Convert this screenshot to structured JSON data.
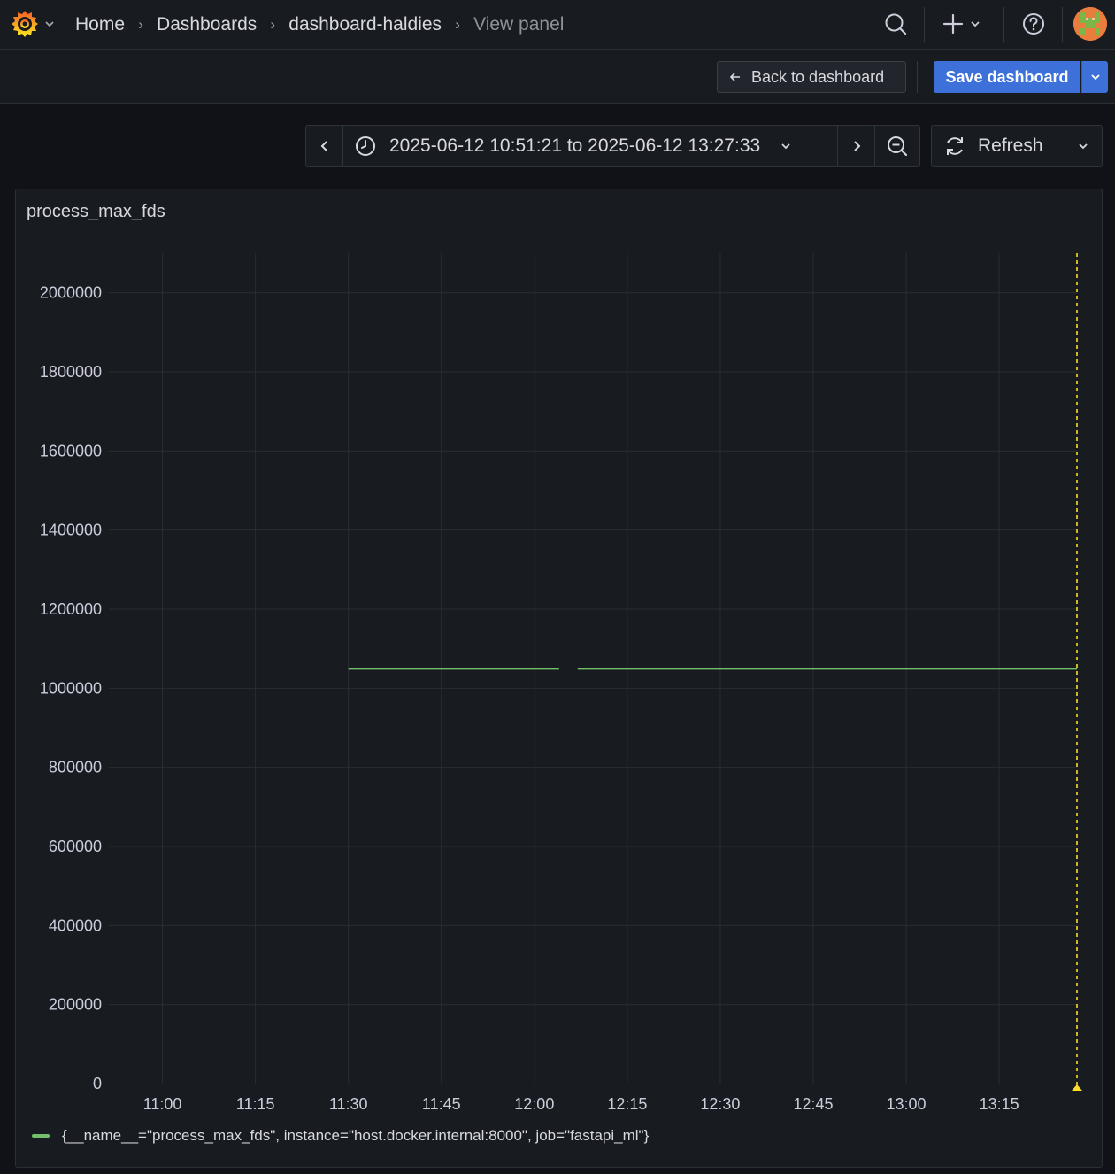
{
  "topbar": {
    "breadcrumbs": [
      "Home",
      "Dashboards",
      "dashboard-haldies"
    ],
    "current": "View panel",
    "icons": [
      "grafana-logo-icon",
      "search-icon",
      "plus-icon",
      "help-icon",
      "avatar"
    ]
  },
  "actions": {
    "back_label": "Back to dashboard",
    "save_label": "Save dashboard"
  },
  "time_picker": {
    "range": "2025-06-12 10:51:21 to 2025-06-12 13:27:33",
    "refresh_label": "Refresh"
  },
  "colors": {
    "series": "#73bf69",
    "now_marker": "#fade2a",
    "accent": "#3d71d9"
  },
  "panel": {
    "title": "process_max_fds"
  },
  "chart_data": {
    "type": "line",
    "title": "process_max_fds",
    "y_ticks": [
      0,
      200000,
      400000,
      600000,
      800000,
      1000000,
      1200000,
      1400000,
      1600000,
      1800000,
      2000000
    ],
    "x_ticks": [
      "11:00",
      "11:15",
      "11:30",
      "11:45",
      "12:00",
      "12:15",
      "12:30",
      "12:45",
      "13:00",
      "13:15"
    ],
    "ylim": [
      0,
      2100000
    ],
    "xlim": [
      "10:51:21",
      "13:27:33"
    ],
    "grid": true,
    "legend_placement": "bottom-left",
    "series": [
      {
        "name": "{__name__=\"process_max_fds\", instance=\"host.docker.internal:8000\", job=\"fastapi_ml\"}",
        "segments": [
          [
            [
              "11:30",
              1048576
            ],
            [
              "12:04",
              1048576
            ]
          ],
          [
            [
              "12:07",
              1048576
            ],
            [
              "13:27:33",
              1048576
            ]
          ]
        ]
      }
    ],
    "now_marker": "13:27:33"
  }
}
